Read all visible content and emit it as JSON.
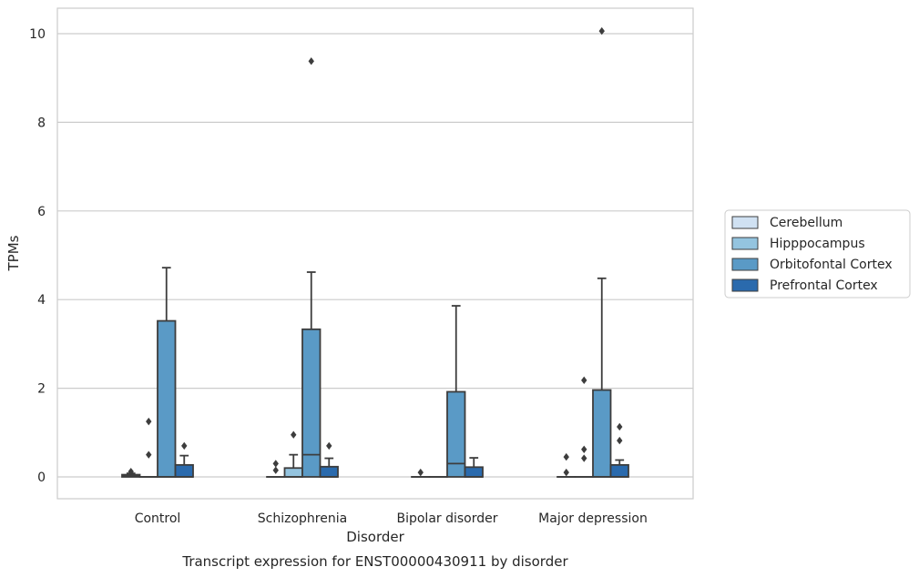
{
  "caption": "Transcript expression for ENST00000430911 by disorder",
  "chart_data": {
    "type": "box",
    "title": "",
    "xlabel": "Disorder",
    "ylabel": "TPMs",
    "ylim": [
      -0.45,
      10.55
    ],
    "yticks": [
      0,
      2,
      4,
      6,
      8,
      10
    ],
    "grid": "horizontal",
    "legend_position": "right",
    "categories": [
      "Control",
      "Schizophrenia",
      "Bipolar disorder",
      "Major depression"
    ],
    "series": [
      {
        "name": "Cerebellum",
        "color": "#d0e1f2",
        "boxes": [
          {
            "min": 0,
            "q1": 0,
            "median": 0.02,
            "q3": 0.05,
            "max": 0.08,
            "outliers": [
              0.12
            ]
          },
          {
            "min": 0,
            "q1": 0,
            "median": 0,
            "q3": 0,
            "max": 0,
            "outliers": [
              0.15,
              0.3
            ]
          },
          {
            "min": 0,
            "q1": 0,
            "median": 0,
            "q3": 0,
            "max": 0,
            "outliers": [
              0.1
            ]
          },
          {
            "min": 0,
            "q1": 0,
            "median": 0,
            "q3": 0,
            "max": 0,
            "outliers": [
              0.1,
              0.45
            ]
          }
        ]
      },
      {
        "name": "Hipppocampus",
        "color": "#94c4df",
        "boxes": [
          {
            "min": 0,
            "q1": 0,
            "median": 0,
            "q3": 0,
            "max": 0,
            "outliers": [
              0.5,
              1.25
            ]
          },
          {
            "min": 0,
            "q1": 0,
            "median": 0,
            "q3": 0.2,
            "max": 0.5,
            "outliers": [
              0.95
            ]
          },
          {
            "min": 0,
            "q1": 0,
            "median": 0,
            "q3": 0,
            "max": 0,
            "outliers": []
          },
          {
            "min": 0,
            "q1": 0,
            "median": 0,
            "q3": 0,
            "max": 0,
            "outliers": [
              0.42,
              0.62,
              2.18
            ]
          }
        ]
      },
      {
        "name": "Orbitofontal Cortex",
        "color": "#5a9ac6",
        "boxes": [
          {
            "min": 0,
            "q1": 0,
            "median": 0,
            "q3": 3.52,
            "max": 4.72,
            "outliers": []
          },
          {
            "min": 0,
            "q1": 0,
            "median": 0.5,
            "q3": 3.33,
            "max": 4.62,
            "outliers": [
              9.38
            ]
          },
          {
            "min": 0,
            "q1": 0,
            "median": 0.3,
            "q3": 1.92,
            "max": 3.86,
            "outliers": []
          },
          {
            "min": 0,
            "q1": 0,
            "median": 0,
            "q3": 1.96,
            "max": 4.48,
            "outliers": [
              10.06
            ]
          }
        ]
      },
      {
        "name": "Prefrontal Cortex",
        "color": "#2a6aad",
        "boxes": [
          {
            "min": 0,
            "q1": 0,
            "median": 0,
            "q3": 0.27,
            "max": 0.48,
            "outliers": [
              0.7
            ]
          },
          {
            "min": 0,
            "q1": 0,
            "median": 0,
            "q3": 0.23,
            "max": 0.42,
            "outliers": [
              0.7
            ]
          },
          {
            "min": 0,
            "q1": 0,
            "median": 0,
            "q3": 0.22,
            "max": 0.43,
            "outliers": []
          },
          {
            "min": 0,
            "q1": 0,
            "median": 0,
            "q3": 0.27,
            "max": 0.38,
            "outliers": [
              0.82,
              1.13
            ]
          }
        ]
      }
    ]
  }
}
